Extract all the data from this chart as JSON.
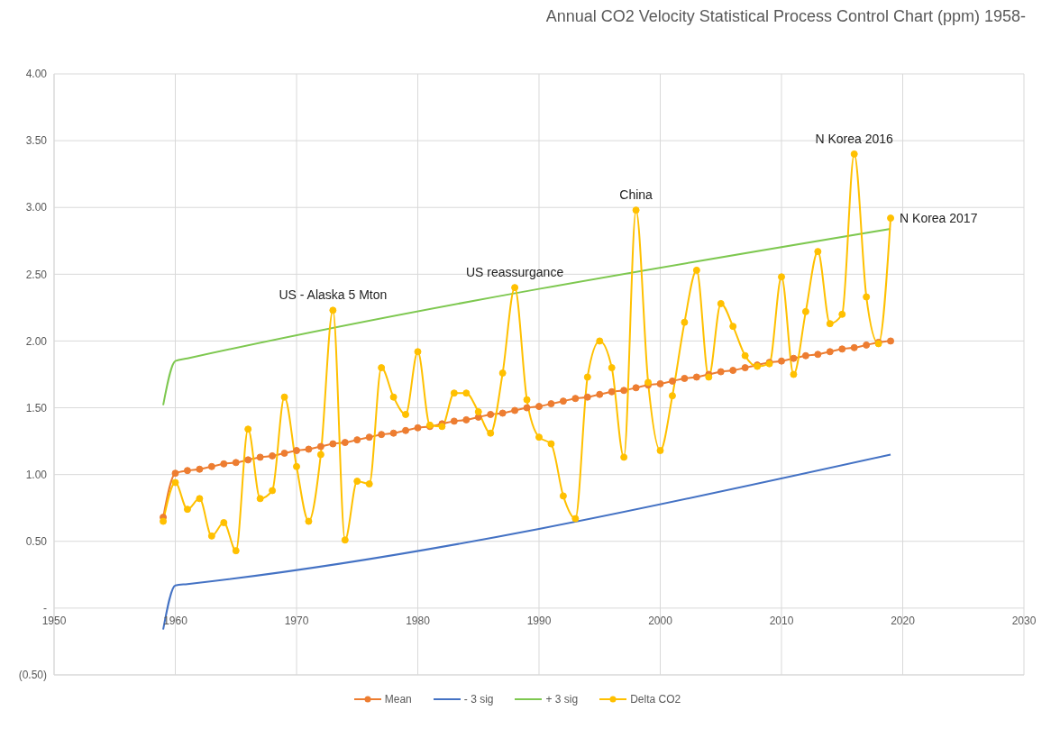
{
  "chart_data": {
    "type": "line",
    "title": "Annual CO2 Velocity Statistical Process Control Chart (ppm) 1958-",
    "x": [
      1959,
      1960,
      1961,
      1962,
      1963,
      1964,
      1965,
      1966,
      1967,
      1968,
      1969,
      1970,
      1971,
      1972,
      1973,
      1974,
      1975,
      1976,
      1977,
      1978,
      1979,
      1980,
      1981,
      1982,
      1983,
      1984,
      1985,
      1986,
      1987,
      1988,
      1989,
      1990,
      1991,
      1992,
      1993,
      1994,
      1995,
      1996,
      1997,
      1998,
      1999,
      2000,
      2001,
      2002,
      2003,
      2004,
      2005,
      2006,
      2007,
      2008,
      2009,
      2010,
      2011,
      2012,
      2013,
      2014,
      2015,
      2016,
      2017,
      2018,
      2019
    ],
    "series": [
      {
        "name": "Mean",
        "color": "#ed7d31",
        "marker": "circle",
        "values": [
          0.68,
          1.01,
          1.03,
          1.04,
          1.06,
          1.08,
          1.09,
          1.11,
          1.13,
          1.14,
          1.16,
          1.18,
          1.19,
          1.21,
          1.23,
          1.24,
          1.26,
          1.28,
          1.3,
          1.31,
          1.33,
          1.35,
          1.36,
          1.38,
          1.4,
          1.41,
          1.43,
          1.45,
          1.46,
          1.48,
          1.5,
          1.51,
          1.53,
          1.55,
          1.57,
          1.58,
          1.6,
          1.62,
          1.63,
          1.65,
          1.67,
          1.68,
          1.7,
          1.72,
          1.73,
          1.75,
          1.77,
          1.78,
          1.8,
          1.82,
          1.84,
          1.85,
          1.87,
          1.89,
          1.9,
          1.92,
          1.94,
          1.95,
          1.97,
          1.99,
          2.0
        ]
      },
      {
        "name": "- 3 sig",
        "color": "#4472c4",
        "marker": "none",
        "x": [
          1959,
          1960,
          1961,
          2019
        ],
        "values": [
          -0.16,
          0.17,
          0.18,
          1.15
        ]
      },
      {
        "name": "+ 3 sig",
        "color": "#7ec850",
        "marker": "none",
        "x": [
          1959,
          1960,
          1961,
          2019
        ],
        "values": [
          1.52,
          1.85,
          1.87,
          2.84
        ]
      },
      {
        "name": "Delta CO2",
        "color": "#ffc000",
        "marker": "circle",
        "values": [
          0.65,
          0.94,
          0.74,
          0.82,
          0.54,
          0.64,
          0.43,
          1.34,
          0.82,
          0.88,
          1.58,
          1.06,
          0.65,
          1.15,
          2.23,
          0.51,
          0.95,
          0.93,
          1.8,
          1.58,
          1.45,
          1.92,
          1.37,
          1.36,
          1.61,
          1.61,
          1.47,
          1.31,
          1.76,
          2.4,
          1.56,
          1.28,
          1.23,
          0.84,
          0.67,
          1.73,
          2.0,
          1.8,
          1.13,
          2.98,
          1.69,
          1.18,
          1.59,
          2.14,
          2.53,
          1.73,
          2.28,
          2.11,
          1.89,
          1.81,
          1.83,
          2.48,
          1.75,
          2.22,
          2.67,
          2.13,
          2.2,
          3.4,
          2.33,
          1.98,
          2.92
        ]
      }
    ],
    "xlim": [
      1950,
      2030
    ],
    "xticks": [
      1950,
      1960,
      1970,
      1980,
      1990,
      2000,
      2010,
      2020,
      2030
    ],
    "ylim": [
      -0.5,
      4
    ],
    "yticks": [
      {
        "value": -0.5,
        "label": "(0.50)"
      },
      {
        "value": 0,
        "label": "-"
      },
      {
        "value": 0.5,
        "label": "0.50"
      },
      {
        "value": 1,
        "label": "1.00"
      },
      {
        "value": 1.5,
        "label": "1.50"
      },
      {
        "value": 2,
        "label": "2.00"
      },
      {
        "value": 2.5,
        "label": "2.50"
      },
      {
        "value": 3,
        "label": "3.00"
      },
      {
        "value": 3.5,
        "label": "3.50"
      },
      {
        "value": 4,
        "label": "4.00"
      }
    ],
    "grid": true,
    "legend": "bottom",
    "line_style": "solid",
    "annotations": [
      {
        "text": "US - Alaska 5 Mton",
        "x": 1973,
        "y": 2.23
      },
      {
        "text": "US reassurgance",
        "x": 1988,
        "y": 2.4
      },
      {
        "text": "China",
        "x": 1998,
        "y": 2.98
      },
      {
        "text": "N Korea 2016",
        "x": 2016,
        "y": 3.4
      },
      {
        "text": "N Korea 2017",
        "x": 2019,
        "y": 2.92
      }
    ]
  }
}
